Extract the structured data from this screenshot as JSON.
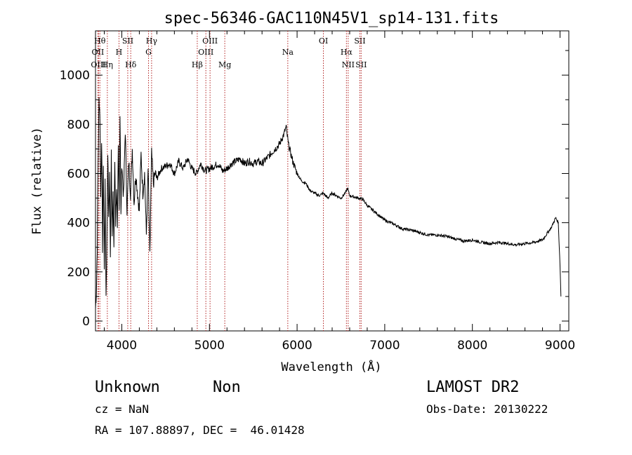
{
  "chart_data": {
    "type": "line",
    "title": "spec-56346-GAC110N45V1_sp14-131.fits",
    "xlabel": "Wavelength (Å)",
    "ylabel": "Flux (relative)",
    "xlim": [
      3700,
      9100
    ],
    "ylim": [
      -40,
      1180
    ],
    "x_ticks": [
      4000,
      5000,
      6000,
      7000,
      8000,
      9000
    ],
    "y_ticks": [
      0,
      200,
      400,
      600,
      800,
      1000
    ],
    "grid": false,
    "series": [
      {
        "x": [
          3700,
          3710,
          3720,
          3730,
          3740,
          3750,
          3760,
          3770,
          3780,
          3790,
          3800,
          3810,
          3820,
          3830,
          3840,
          3850,
          3860,
          3870,
          3880,
          3890,
          3900,
          3910,
          3920,
          3930,
          3940,
          3950,
          3960,
          3970,
          3980,
          3990,
          4000,
          4020,
          4040,
          4060,
          4080,
          4100,
          4120,
          4140,
          4160,
          4180,
          4200,
          4220,
          4240,
          4260,
          4280,
          4300,
          4320,
          4340,
          4360,
          4380,
          4400,
          4450,
          4500,
          4550,
          4600,
          4650,
          4700,
          4750,
          4800,
          4850,
          4900,
          4950,
          5000,
          5050,
          5100,
          5150,
          5200,
          5250,
          5300,
          5350,
          5400,
          5450,
          5500,
          5550,
          5600,
          5650,
          5700,
          5750,
          5800,
          5850,
          5875,
          5900,
          5950,
          6000,
          6050,
          6100,
          6150,
          6200,
          6250,
          6300,
          6350,
          6400,
          6450,
          6500,
          6550,
          6575,
          6600,
          6650,
          6700,
          6750,
          6800,
          6900,
          7000,
          7100,
          7200,
          7300,
          7400,
          7500,
          7600,
          7700,
          7800,
          7900,
          8000,
          8100,
          8200,
          8300,
          8400,
          8500,
          8600,
          8700,
          8800,
          8900,
          8950,
          8980,
          9000,
          9010
        ],
        "y": [
          50,
          120,
          300,
          650,
          900,
          850,
          500,
          750,
          300,
          650,
          200,
          550,
          100,
          300,
          700,
          400,
          600,
          250,
          700,
          350,
          500,
          300,
          650,
          400,
          550,
          350,
          700,
          480,
          850,
          420,
          650,
          500,
          780,
          450,
          650,
          520,
          700,
          480,
          600,
          520,
          450,
          680,
          520,
          600,
          350,
          620,
          260,
          680,
          560,
          600,
          580,
          620,
          630,
          640,
          600,
          650,
          620,
          660,
          620,
          600,
          640,
          610,
          620,
          630,
          640,
          610,
          620,
          640,
          650,
          660,
          640,
          650,
          640,
          650,
          640,
          660,
          680,
          700,
          720,
          760,
          790,
          720,
          650,
          600,
          570,
          560,
          530,
          520,
          510,
          520,
          500,
          520,
          510,
          500,
          520,
          540,
          510,
          505,
          500,
          495,
          470,
          440,
          410,
          395,
          375,
          370,
          360,
          350,
          350,
          345,
          335,
          325,
          330,
          320,
          315,
          320,
          315,
          310,
          315,
          320,
          330,
          380,
          420,
          400,
          230,
          100
        ]
      }
    ],
    "lines": [
      {
        "label": "OII",
        "x": 3727,
        "row": 2
      },
      {
        "label": "OIII",
        "x": 3735,
        "row": 3
      },
      {
        "label": "Hθ",
        "x": 3750,
        "row": 1
      },
      {
        "label": "Hη",
        "x": 3835,
        "row": 3
      },
      {
        "label": "H",
        "x": 3968,
        "row": 2
      },
      {
        "label": "SII",
        "x": 4068,
        "row": 1
      },
      {
        "label": "Hδ",
        "x": 4102,
        "row": 3
      },
      {
        "label": "Hγ",
        "x": 4340,
        "row": 1
      },
      {
        "label": "G",
        "x": 4305,
        "row": 2
      },
      {
        "label": "Hβ",
        "x": 4861,
        "row": 3
      },
      {
        "label": "OIII",
        "x": 5007,
        "row": 1
      },
      {
        "label": "OIII",
        "x": 4959,
        "row": 2
      },
      {
        "label": "Mg",
        "x": 5175,
        "row": 3
      },
      {
        "label": "Na",
        "x": 5894,
        "row": 2
      },
      {
        "label": "OI",
        "x": 6300,
        "row": 1
      },
      {
        "label": "Hα",
        "x": 6563,
        "row": 2
      },
      {
        "label": "NII",
        "x": 6583,
        "row": 3
      },
      {
        "label": "SII",
        "x": 6716,
        "row": 1
      },
      {
        "label": "SII",
        "x": 6731,
        "row": 3
      }
    ]
  },
  "info": {
    "class": "Unknown",
    "subclass": "Non",
    "survey": "LAMOST DR2",
    "cz": "cz = NaN",
    "obs_date": "Obs-Date: 20130222",
    "coords": "RA = 107.88897, DEC =  46.01428"
  }
}
